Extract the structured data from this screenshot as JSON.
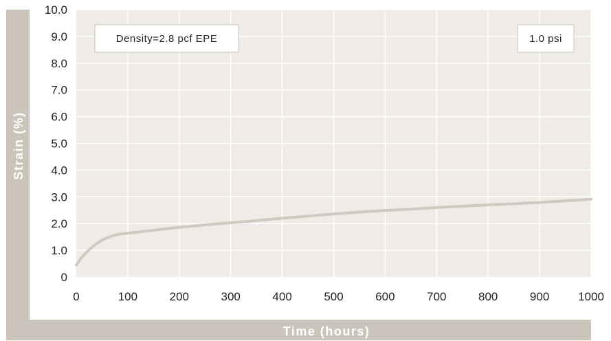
{
  "chart_data": {
    "type": "line",
    "xlabel": "Time (hours)",
    "ylabel": "Strain (%)",
    "xlim": [
      0,
      1000
    ],
    "ylim": [
      0,
      10
    ],
    "x_ticks": [
      "0",
      "100",
      "200",
      "300",
      "400",
      "500",
      "600",
      "700",
      "800",
      "900",
      "1000"
    ],
    "y_ticks": [
      "0",
      "1.0",
      "2.0",
      "3.0",
      "4.0",
      "5.0",
      "6.0",
      "7.0",
      "8.0",
      "9.0",
      "10.0"
    ],
    "grid": true,
    "annotations": [
      "Density=2.8 pcf EPE",
      "1.0 psi"
    ],
    "series": [
      {
        "x": [
          0,
          10,
          20,
          30,
          40,
          50,
          60,
          70,
          80,
          90,
          100,
          150,
          200,
          250,
          300,
          350,
          400,
          450,
          500,
          550,
          600,
          650,
          700,
          750,
          800,
          850,
          900,
          950,
          1000
        ],
        "y": [
          0.45,
          0.72,
          0.93,
          1.11,
          1.26,
          1.38,
          1.47,
          1.54,
          1.59,
          1.62,
          1.64,
          1.75,
          1.86,
          1.95,
          2.03,
          2.11,
          2.2,
          2.28,
          2.36,
          2.43,
          2.49,
          2.54,
          2.6,
          2.65,
          2.7,
          2.74,
          2.79,
          2.85,
          2.91
        ]
      }
    ],
    "colors": {
      "plot_background": "#efebe7",
      "frame": "#cac4ba",
      "grid": "#ffffff",
      "line": "#cfc9c0"
    }
  }
}
